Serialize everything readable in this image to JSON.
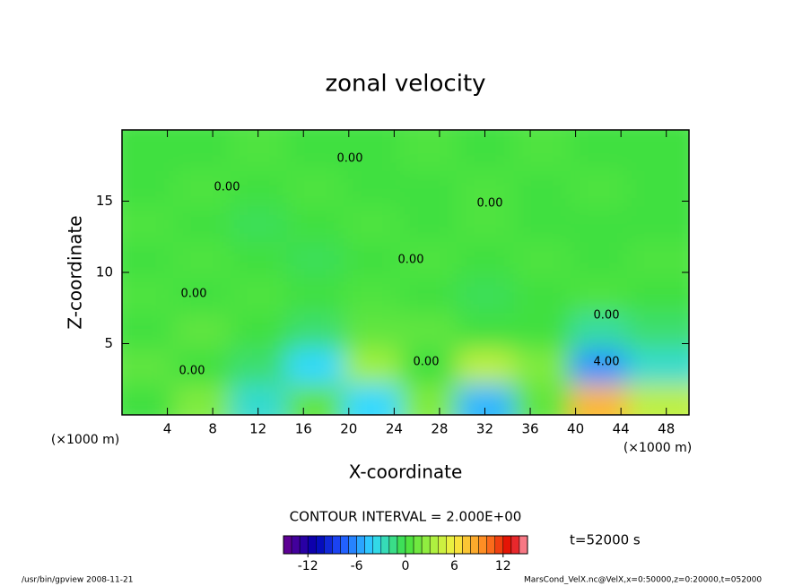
{
  "chart_data": {
    "type": "contour",
    "title": "zonal velocity",
    "x_label": "X-coordinate",
    "y_label": "Z-coordinate",
    "x_unit": "(×1000 m)",
    "y_unit": "(×1000 m)",
    "xlim": [
      0,
      50
    ],
    "ylim": [
      0,
      20
    ],
    "xticks": [
      4,
      8,
      12,
      16,
      20,
      24,
      28,
      32,
      36,
      40,
      44,
      48
    ],
    "yticks": [
      5,
      10,
      15
    ],
    "x": [
      0,
      5,
      10,
      15,
      20,
      25,
      30,
      35,
      40,
      45,
      50
    ],
    "z": [
      0,
      2.5,
      5,
      7.5,
      10,
      12.5,
      15,
      17.5,
      20
    ],
    "values": [
      [
        0,
        2,
        -3,
        1,
        -4,
        2,
        -5,
        1,
        8,
        4
      ],
      [
        1,
        0,
        -1,
        -4,
        3,
        0,
        4,
        2,
        -6,
        -3
      ],
      [
        0,
        1,
        0,
        -1,
        1,
        1,
        0,
        0,
        -2,
        -1
      ],
      [
        0.5,
        0,
        0.5,
        0,
        0.5,
        0,
        -0.5,
        0,
        0.5,
        0
      ],
      [
        0,
        0.5,
        0,
        -0.5,
        0,
        0.5,
        0,
        0.5,
        0,
        0.5
      ],
      [
        0.5,
        0,
        -0.5,
        0,
        0.5,
        0,
        0.5,
        0,
        0,
        0
      ],
      [
        0,
        0.5,
        0,
        0.5,
        0,
        0,
        0.5,
        0,
        0.5,
        0
      ],
      [
        0,
        0,
        0.5,
        0,
        0,
        0.5,
        0,
        0.5,
        0,
        0
      ]
    ],
    "contour_labels": [
      "0.00",
      "0.00",
      "0.00",
      "0.00",
      "0.00",
      "0.00",
      "0.00",
      "0.00",
      "4.00"
    ],
    "contour_interval": "CONTOUR INTERVAL = 2.000E+00",
    "time_label": "t=52000 s",
    "levels": [
      -15,
      -14,
      -13,
      -12,
      -11,
      -10,
      -9,
      -8,
      -7,
      -6,
      -5,
      -4,
      -3,
      -2,
      -1,
      0,
      1,
      2,
      3,
      4,
      5,
      6,
      7,
      8,
      9,
      10,
      11,
      12,
      13,
      14,
      15
    ],
    "colorbar_ticks": [
      -12,
      -6,
      0,
      6,
      12
    ],
    "colormap": [
      [
        -15,
        "#6a0090"
      ],
      [
        -11,
        "#0000b0"
      ],
      [
        -8,
        "#2050ff"
      ],
      [
        -4,
        "#30d8ff"
      ],
      [
        0,
        "#40e040"
      ],
      [
        3,
        "#a0f040"
      ],
      [
        6,
        "#f8f040"
      ],
      [
        10,
        "#ff8020"
      ],
      [
        13,
        "#e00000"
      ],
      [
        15,
        "#ffa0b0"
      ]
    ],
    "footer_left": "/usr/bin/gpview   2008-11-21",
    "footer_right": "MarsCond_VelX.nc@VelX,x=0:50000,z=0:20000,t=052000"
  }
}
